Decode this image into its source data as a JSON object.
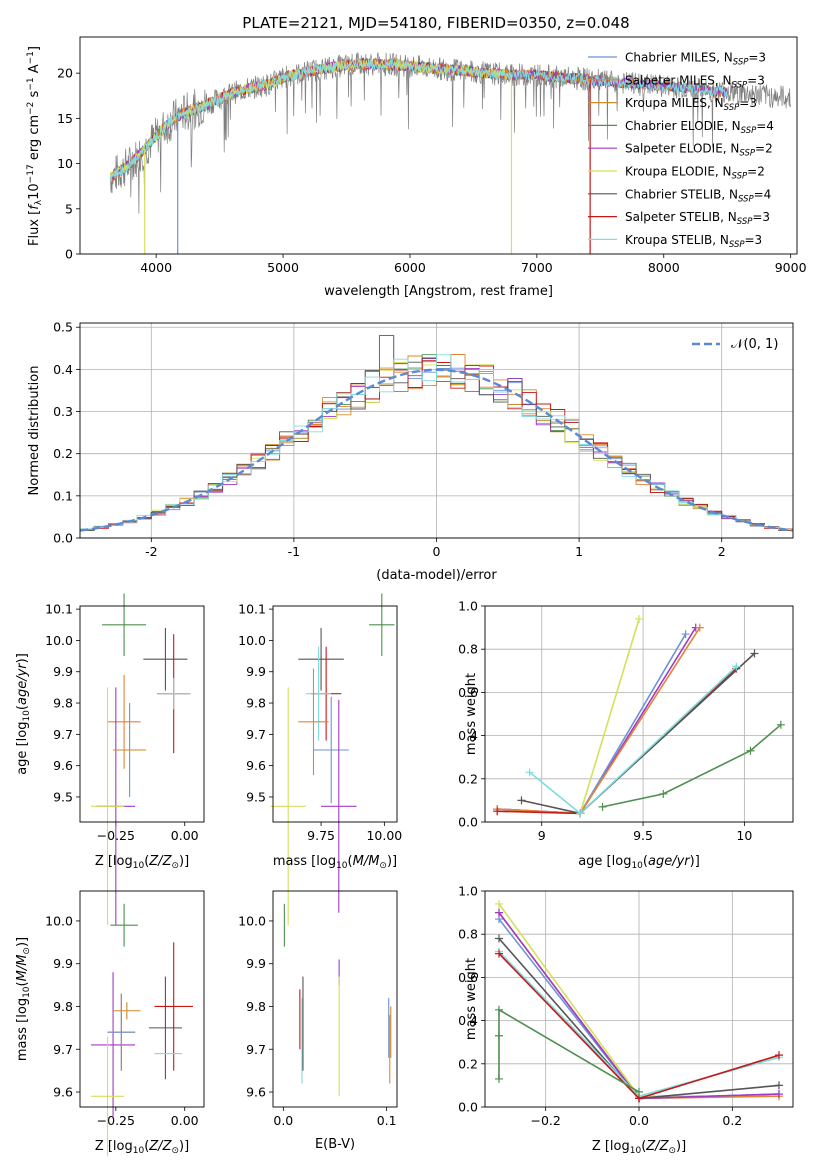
{
  "figure": {
    "title": "PLATE=2121, MJD=54180, FIBERID=0350, z=0.048",
    "series_colors": [
      "#6b93d6",
      "#e4823a",
      "#d18a2a",
      "#4f8f4f",
      "#a23bc4",
      "#d5e05a",
      "#555555",
      "#c71818",
      "#7fdde0"
    ]
  },
  "chart_data": [
    {
      "id": "spectrum",
      "type": "line",
      "title": "PLATE=2121, MJD=54180, FIBERID=0350, z=0.048",
      "xlabel": "wavelength [Angstrom, rest frame]",
      "ylabel": "Flux [f_λ 10^-17 erg cm^-2 s^-1 A^-1]",
      "xlim": [
        3400,
        9050
      ],
      "ylim": [
        0,
        24
      ],
      "xticks": [
        4000,
        5000,
        6000,
        7000,
        8000,
        9000
      ],
      "yticks": [
        0,
        5,
        10,
        15,
        20
      ],
      "grid": false,
      "legend": "top-right",
      "legend_entries": [
        {
          "model": "Chabrier MILES, N",
          "n": "=3"
        },
        {
          "model": "Salpeter MILES, N",
          "n": "=3"
        },
        {
          "model": "Kroupa MILES, N",
          "n": "=3"
        },
        {
          "model": "Chabrier ELODIE, N",
          "n": "=4"
        },
        {
          "model": "Salpeter ELODIE, N",
          "n": "=2"
        },
        {
          "model": "Kroupa ELODIE, N",
          "n": "=2"
        },
        {
          "model": "Chabrier STELIB, N",
          "n": "=4"
        },
        {
          "model": "Salpeter STELIB, N",
          "n": "=3"
        },
        {
          "model": "Kroupa STELIB, N",
          "n": "=3"
        }
      ],
      "legend_subscript": "SSP",
      "data_curve": {
        "x": [
          3640,
          3700,
          3800,
          3900,
          4000,
          4100,
          4200,
          4300,
          4400,
          4500,
          4600,
          4700,
          4800,
          4900,
          5000,
          5200,
          5400,
          5600,
          5800,
          6000,
          6200,
          6400,
          6600,
          6800,
          7000,
          7200,
          7400,
          7600,
          7800,
          8000,
          8200,
          8400,
          8600,
          8800,
          9000
        ],
        "y": [
          8.5,
          9.0,
          10.0,
          11.5,
          13.0,
          14.5,
          15.5,
          16.0,
          16.5,
          17.2,
          17.8,
          18.2,
          18.5,
          18.8,
          19.5,
          20.2,
          20.7,
          21.0,
          21.0,
          20.8,
          20.5,
          20.3,
          20.0,
          19.8,
          19.8,
          19.5,
          19.3,
          19.0,
          18.8,
          18.6,
          18.3,
          18.0,
          17.8,
          17.5,
          17.3
        ]
      },
      "dropouts": [
        {
          "x": 3910,
          "series": 5
        },
        {
          "x": 4170,
          "series": 0
        },
        {
          "x": 6800,
          "series": 5
        },
        {
          "x": 7420,
          "series": 7
        }
      ],
      "model_end_x": [
        8500,
        8500,
        7420,
        8500,
        8500,
        6800,
        8500,
        7420,
        8500
      ]
    },
    {
      "id": "residuals",
      "type": "step",
      "xlabel": "(data-model)/error",
      "ylabel": "Normed distribution",
      "xlim": [
        -2.5,
        2.5
      ],
      "ylim": [
        0,
        0.51
      ],
      "xticks": [
        -2,
        -1,
        0,
        1,
        2
      ],
      "yticks": [
        0.0,
        0.1,
        0.2,
        0.3,
        0.4,
        0.5
      ],
      "grid": true,
      "legend": "top-right",
      "gauss_label": "𝒩(0, 1)",
      "bin_width": 0.1
    },
    {
      "id": "age-z",
      "type": "errorbar",
      "xlabel": "Z [log10(Z/Z⊙)]",
      "ylabel": "age [log10(age/yr)]",
      "xlim": [
        -0.38,
        0.07
      ],
      "ylim": [
        9.42,
        10.11
      ],
      "xticks": [
        -0.25,
        0.0
      ],
      "xticklabels": [
        "−0.25",
        "0.00"
      ],
      "yticks": [
        9.5,
        9.6,
        9.7,
        9.8,
        9.9,
        10.0,
        10.1
      ],
      "points": [
        {
          "s": 0,
          "x": -0.2,
          "y": 9.65,
          "xe": 0.0,
          "ye": 0.15
        },
        {
          "s": 1,
          "x": -0.22,
          "y": 9.74,
          "xe": 0.06,
          "ye": 0.15
        },
        {
          "s": 3,
          "x": -0.22,
          "y": 10.05,
          "xe": 0.08,
          "ye": 0.1
        },
        {
          "s": 4,
          "x": -0.25,
          "y": 9.47,
          "xe": 0.07,
          "ye": 0.38
        },
        {
          "s": 5,
          "x": -0.28,
          "y": 9.47,
          "xe": 0.06,
          "ye": 0.38
        },
        {
          "s": 6,
          "x": -0.07,
          "y": 9.94,
          "xe": 0.08,
          "ye": 0.1
        },
        {
          "s": 7,
          "x": -0.04,
          "y": 9.83,
          "xe": 0.06,
          "ye": 0.19
        },
        {
          "s": 8,
          "x": -0.04,
          "y": 9.83,
          "xe": 0.06,
          "ye": 0.05
        },
        {
          "s": 2,
          "x": -0.2,
          "y": 9.65,
          "xe": 0.06,
          "ye": 0.0
        }
      ]
    },
    {
      "id": "age-mass",
      "type": "errorbar",
      "xlabel": "mass [log10(M/M⊙)]",
      "ylabel": "",
      "xlim": [
        9.56,
        10.05
      ],
      "ylim": [
        9.42,
        10.11
      ],
      "xticks": [
        9.75,
        10.0
      ],
      "xticklabels": [
        "9.75",
        "10.00"
      ],
      "yticks": [
        9.5,
        9.6,
        9.7,
        9.8,
        9.9,
        10.0,
        10.1
      ],
      "points": [
        {
          "s": 3,
          "x": 9.99,
          "y": 10.05,
          "xe": 0.05,
          "ye": 0.1
        },
        {
          "s": 6,
          "x": 9.75,
          "y": 9.94,
          "xe": 0.09,
          "ye": 0.1
        },
        {
          "s": 7,
          "x": 9.77,
          "y": 9.83,
          "xe": 0.06,
          "ye": 0.15
        },
        {
          "s": 8,
          "x": 9.74,
          "y": 9.83,
          "xe": 0.05,
          "ye": 0.15
        },
        {
          "s": 1,
          "x": 9.72,
          "y": 9.74,
          "xe": 0.06,
          "ye": 0.17
        },
        {
          "s": 0,
          "x": 9.79,
          "y": 9.65,
          "xe": 0.07,
          "ye": 0.17
        },
        {
          "s": 4,
          "x": 9.82,
          "y": 9.47,
          "xe": 0.07,
          "ye": 0.34
        },
        {
          "s": 5,
          "x": 9.62,
          "y": 9.47,
          "xe": 0.07,
          "ye": 0.38
        }
      ]
    },
    {
      "id": "mw-age",
      "type": "line",
      "xlabel": "age [log10(age/yr)]",
      "ylabel": "mass weight",
      "xlim": [
        8.72,
        10.24
      ],
      "ylim": [
        0,
        1.0
      ],
      "xticks": [
        9.0,
        9.5,
        10.0
      ],
      "yticks": [
        0.0,
        0.2,
        0.4,
        0.6,
        0.8,
        1.0
      ],
      "grid": true,
      "lines": [
        {
          "s": 4,
          "x": [
            8.78,
            9.19,
            9.76
          ],
          "y": [
            0.06,
            0.04,
            0.9
          ]
        },
        {
          "s": 0,
          "x": [
            8.78,
            9.19,
            9.71
          ],
          "y": [
            0.06,
            0.04,
            0.87
          ]
        },
        {
          "s": 1,
          "x": [
            8.78,
            9.19,
            9.78
          ],
          "y": [
            0.06,
            0.04,
            0.9
          ]
        },
        {
          "s": 5,
          "x": [
            8.78,
            9.19,
            9.48
          ],
          "y": [
            0.05,
            0.04,
            0.94
          ]
        },
        {
          "s": 7,
          "x": [
            8.78,
            9.19,
            9.96
          ],
          "y": [
            0.05,
            0.04,
            0.71
          ]
        },
        {
          "s": 6,
          "x": [
            8.9,
            9.19,
            10.05
          ],
          "y": [
            0.1,
            0.04,
            0.78
          ]
        },
        {
          "s": 8,
          "x": [
            8.94,
            9.19,
            9.96
          ],
          "y": [
            0.23,
            0.04,
            0.72
          ]
        },
        {
          "s": 3,
          "x": [
            9.3,
            9.6,
            10.03,
            10.18
          ],
          "y": [
            0.07,
            0.13,
            0.33,
            0.45
          ]
        }
      ]
    },
    {
      "id": "mass-z",
      "type": "errorbar",
      "xlabel": "Z [log10(Z/Z⊙)]",
      "ylabel": "mass [log10(M/M⊙)]",
      "xlim": [
        -0.38,
        0.07
      ],
      "ylim": [
        9.565,
        10.07
      ],
      "xticks": [
        -0.25,
        0.0
      ],
      "xticklabels": [
        "−0.25",
        "0.00"
      ],
      "yticks": [
        9.6,
        9.7,
        9.8,
        9.9,
        10.0
      ],
      "points": [
        {
          "s": 3,
          "x": -0.22,
          "y": 9.99,
          "xe": 0.05,
          "ye": 0.05
        },
        {
          "s": 4,
          "x": -0.26,
          "y": 9.71,
          "xe": 0.08,
          "ye": 0.17
        },
        {
          "s": 5,
          "x": -0.28,
          "y": 9.59,
          "xe": 0.06,
          "ye": 0.14
        },
        {
          "s": 1,
          "x": -0.23,
          "y": 9.74,
          "xe": 0.05,
          "ye": 0.09
        },
        {
          "s": 0,
          "x": -0.23,
          "y": 9.74,
          "xe": 0.05,
          "ye": 0.09
        },
        {
          "s": 6,
          "x": -0.07,
          "y": 9.75,
          "xe": 0.06,
          "ye": 0.12
        },
        {
          "s": 7,
          "x": -0.04,
          "y": 9.8,
          "xe": 0.07,
          "ye": 0.15
        },
        {
          "s": 8,
          "x": -0.06,
          "y": 9.69,
          "xe": 0.05,
          "ye": 0.0
        },
        {
          "s": 2,
          "x": -0.21,
          "y": 9.79,
          "xe": 0.05,
          "ye": 0.02
        }
      ]
    },
    {
      "id": "mass-ebv",
      "type": "errorbar",
      "xlabel": "E(B-V)",
      "ylabel": "",
      "xlim": [
        -0.01,
        0.11
      ],
      "ylim": [
        9.565,
        10.07
      ],
      "xticks": [
        0.0,
        0.1
      ],
      "xticklabels": [
        "0.0",
        "0.1"
      ],
      "yticks": [
        9.6,
        9.7,
        9.8,
        9.9,
        10.0
      ],
      "points": [
        {
          "s": 3,
          "x": 0.001,
          "y": 9.99,
          "xe": 0,
          "ye": 0.05
        },
        {
          "s": 7,
          "x": 0.016,
          "y": 9.77,
          "xe": 0,
          "ye": 0.07
        },
        {
          "s": 8,
          "x": 0.018,
          "y": 9.72,
          "xe": 0,
          "ye": 0.1
        },
        {
          "s": 6,
          "x": 0.019,
          "y": 9.76,
          "xe": 0,
          "ye": 0.11
        },
        {
          "s": 4,
          "x": 0.054,
          "y": 9.88,
          "xe": 0,
          "ye": 0.03
        },
        {
          "s": 5,
          "x": 0.054,
          "y": 9.73,
          "xe": 0,
          "ye": 0.14
        },
        {
          "s": 0,
          "x": 0.102,
          "y": 9.75,
          "xe": 0,
          "ye": 0.07
        },
        {
          "s": 1,
          "x": 0.103,
          "y": 9.7,
          "xe": 0,
          "ye": 0.08
        },
        {
          "s": 2,
          "x": 0.104,
          "y": 9.74,
          "xe": 0,
          "ye": 0.06
        }
      ]
    },
    {
      "id": "mw-z",
      "type": "line",
      "xlabel": "Z [log10(Z/Z⊙)]",
      "ylabel": "mass weight",
      "xlim": [
        -0.33,
        0.33
      ],
      "ylim": [
        0,
        1.0
      ],
      "xticks": [
        -0.2,
        0.0,
        0.2
      ],
      "xticklabels": [
        "−0.2",
        "0.0",
        "0.2"
      ],
      "yticks": [
        0.0,
        0.2,
        0.4,
        0.6,
        0.8,
        1.0
      ],
      "grid": true,
      "lines": [
        {
          "s": 5,
          "x": [
            -0.3,
            0.0,
            0.3
          ],
          "y": [
            0.94,
            0.05,
            0.05
          ]
        },
        {
          "s": 1,
          "x": [
            -0.3,
            0.0,
            0.3
          ],
          "y": [
            0.9,
            0.04,
            0.05
          ]
        },
        {
          "s": 0,
          "x": [
            -0.3,
            0.0,
            0.3
          ],
          "y": [
            0.87,
            0.04,
            0.06
          ]
        },
        {
          "s": 4,
          "x": [
            -0.3,
            0.0,
            0.3
          ],
          "y": [
            0.9,
            0.04,
            0.06
          ]
        },
        {
          "s": 6,
          "x": [
            -0.3,
            0.0,
            0.3
          ],
          "y": [
            0.78,
            0.04,
            0.1
          ]
        },
        {
          "s": 8,
          "x": [
            -0.3,
            0.0,
            0.3
          ],
          "y": [
            0.72,
            0.05,
            0.23
          ]
        },
        {
          "s": 7,
          "x": [
            -0.3,
            0.0,
            0.3
          ],
          "y": [
            0.71,
            0.04,
            0.24
          ]
        },
        {
          "s": 3,
          "x": [
            -0.3,
            -0.3,
            -0.3,
            0.0
          ],
          "y": [
            0.13,
            0.33,
            0.45,
            0.07
          ]
        }
      ]
    }
  ]
}
